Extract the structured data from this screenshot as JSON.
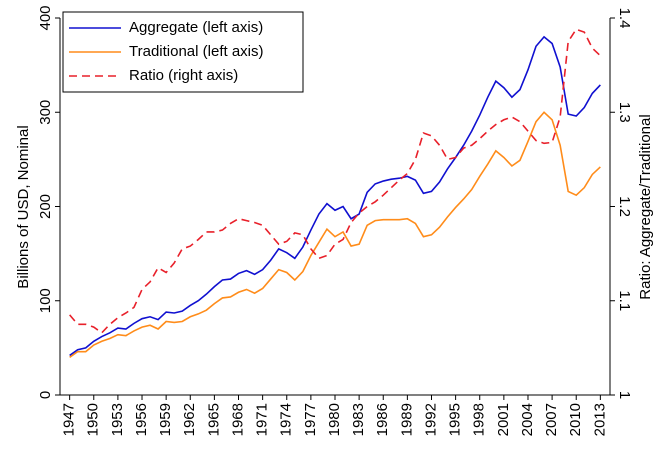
{
  "chart_data": {
    "type": "line",
    "y_label": "Billions of USD, Nominal",
    "y2_label": "Ratio: Aggregate/Traditional",
    "x": [
      1947,
      1948,
      1949,
      1950,
      1951,
      1952,
      1953,
      1954,
      1955,
      1956,
      1957,
      1958,
      1959,
      1960,
      1961,
      1962,
      1963,
      1964,
      1965,
      1966,
      1967,
      1968,
      1969,
      1970,
      1971,
      1972,
      1973,
      1974,
      1975,
      1976,
      1977,
      1978,
      1979,
      1980,
      1981,
      1982,
      1983,
      1984,
      1985,
      1986,
      1987,
      1988,
      1989,
      1990,
      1991,
      1992,
      1993,
      1994,
      1995,
      1996,
      1997,
      1998,
      1999,
      2000,
      2001,
      2002,
      2003,
      2004,
      2005,
      2006,
      2007,
      2008,
      2009,
      2010,
      2011,
      2012,
      2013
    ],
    "xlim": [
      1945.8,
      2014.2
    ],
    "xticks": [
      1947,
      1950,
      1953,
      1956,
      1959,
      1962,
      1965,
      1968,
      1971,
      1974,
      1977,
      1980,
      1983,
      1986,
      1989,
      1992,
      1995,
      1998,
      2001,
      2004,
      2007,
      2010,
      2013
    ],
    "ylim": [
      0,
      400
    ],
    "yticks": [
      0,
      100,
      200,
      300,
      400
    ],
    "y2lim": [
      1,
      1.4
    ],
    "y2ticks": [
      1,
      1.1,
      1.2,
      1.3,
      1.4
    ],
    "legend": "upper left",
    "series": [
      {
        "name": "Aggregate (left axis)",
        "color": "#1010d0",
        "style": "solid",
        "values": [
          42,
          48,
          50,
          57,
          62,
          66,
          71,
          70,
          76,
          81,
          83,
          80,
          88,
          87,
          89,
          95,
          100,
          107,
          115,
          122,
          123,
          129,
          132,
          128,
          133,
          143,
          155,
          151,
          145,
          157,
          175,
          192,
          203,
          196,
          200,
          187,
          192,
          215,
          224,
          227,
          229,
          230,
          232,
          228,
          214,
          216,
          226,
          240,
          252,
          265,
          280,
          297,
          316,
          333,
          326,
          316,
          324,
          345,
          370,
          380,
          373,
          348,
          298,
          296,
          305,
          320,
          329
        ]
      },
      {
        "name": "Traditional (left axis)",
        "color": "#ff8c1a",
        "style": "solid",
        "values": [
          40,
          46,
          46,
          53,
          57,
          60,
          64,
          63,
          68,
          72,
          74,
          70,
          78,
          77,
          78,
          83,
          86,
          90,
          97,
          103,
          104,
          109,
          112,
          108,
          113,
          123,
          133,
          130,
          122,
          131,
          148,
          162,
          176,
          168,
          173,
          158,
          160,
          180,
          185,
          186,
          186,
          186,
          187,
          182,
          168,
          170,
          178,
          189,
          199,
          208,
          218,
          232,
          245,
          259,
          252,
          243,
          249,
          269,
          290,
          300,
          292,
          265,
          216,
          212,
          220,
          234,
          242
        ]
      },
      {
        "name": "Ratio (right axis)",
        "color": "#e8202a",
        "style": "dashed",
        "axis": "y2",
        "values": [
          1.085,
          1.075,
          1.075,
          1.072,
          1.066,
          1.075,
          1.082,
          1.087,
          1.093,
          1.112,
          1.12,
          1.135,
          1.13,
          1.14,
          1.155,
          1.158,
          1.165,
          1.173,
          1.173,
          1.175,
          1.182,
          1.187,
          1.185,
          1.183,
          1.18,
          1.17,
          1.16,
          1.163,
          1.172,
          1.17,
          1.155,
          1.145,
          1.148,
          1.16,
          1.165,
          1.183,
          1.193,
          1.2,
          1.205,
          1.212,
          1.22,
          1.228,
          1.235,
          1.25,
          1.278,
          1.275,
          1.265,
          1.25,
          1.252,
          1.262,
          1.265,
          1.272,
          1.28,
          1.287,
          1.292,
          1.295,
          1.29,
          1.28,
          1.27,
          1.267,
          1.268,
          1.295,
          1.375,
          1.388,
          1.385,
          1.368,
          1.36
        ]
      }
    ]
  }
}
